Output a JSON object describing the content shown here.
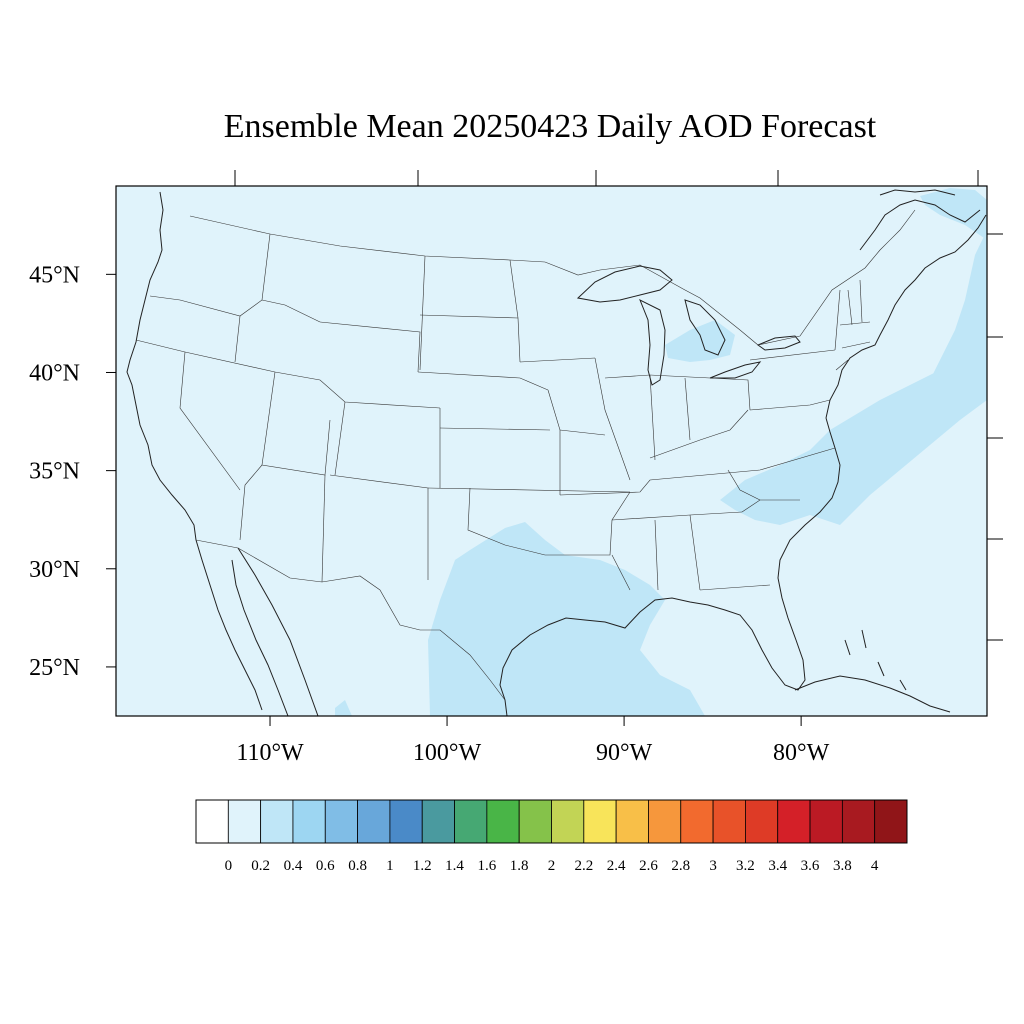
{
  "title": "Ensemble Mean 20250423 Daily AOD Forecast",
  "map": {
    "lat_range": [
      22.5,
      49.5
    ],
    "lon_range": [
      -118.7,
      -69.5
    ],
    "lat_ticks": [
      "45°N",
      "40°N",
      "35°N",
      "30°N",
      "25°N"
    ],
    "lat_tick_values": [
      45,
      40,
      35,
      30,
      25
    ],
    "lon_ticks": [
      "110°W",
      "100°W",
      "90°W",
      "80°W"
    ],
    "lon_tick_values": [
      -110,
      -100,
      -90,
      -80
    ],
    "background_color": "#e0f3fb",
    "plume_color": "#bfe6f7",
    "border_color": "#333333"
  },
  "colorbar": {
    "labels": [
      "0",
      "0.2",
      "0.4",
      "0.6",
      "0.8",
      "1",
      "1.2",
      "1.4",
      "1.6",
      "1.8",
      "2",
      "2.2",
      "2.4",
      "2.6",
      "2.8",
      "3",
      "3.2",
      "3.4",
      "3.6",
      "3.8",
      "4"
    ],
    "colors": [
      "#ffffff",
      "#e0f3fb",
      "#bfe6f7",
      "#9dd6f2",
      "#80bde6",
      "#68a7da",
      "#4a8ac8",
      "#4a9a9f",
      "#46a873",
      "#49b547",
      "#85c24a",
      "#c2d455",
      "#f8e45a",
      "#f8bf48",
      "#f6973c",
      "#f26a2e",
      "#e85229",
      "#de3b26",
      "#d42028",
      "#bb1a24",
      "#a81a20",
      "#901518"
    ]
  }
}
